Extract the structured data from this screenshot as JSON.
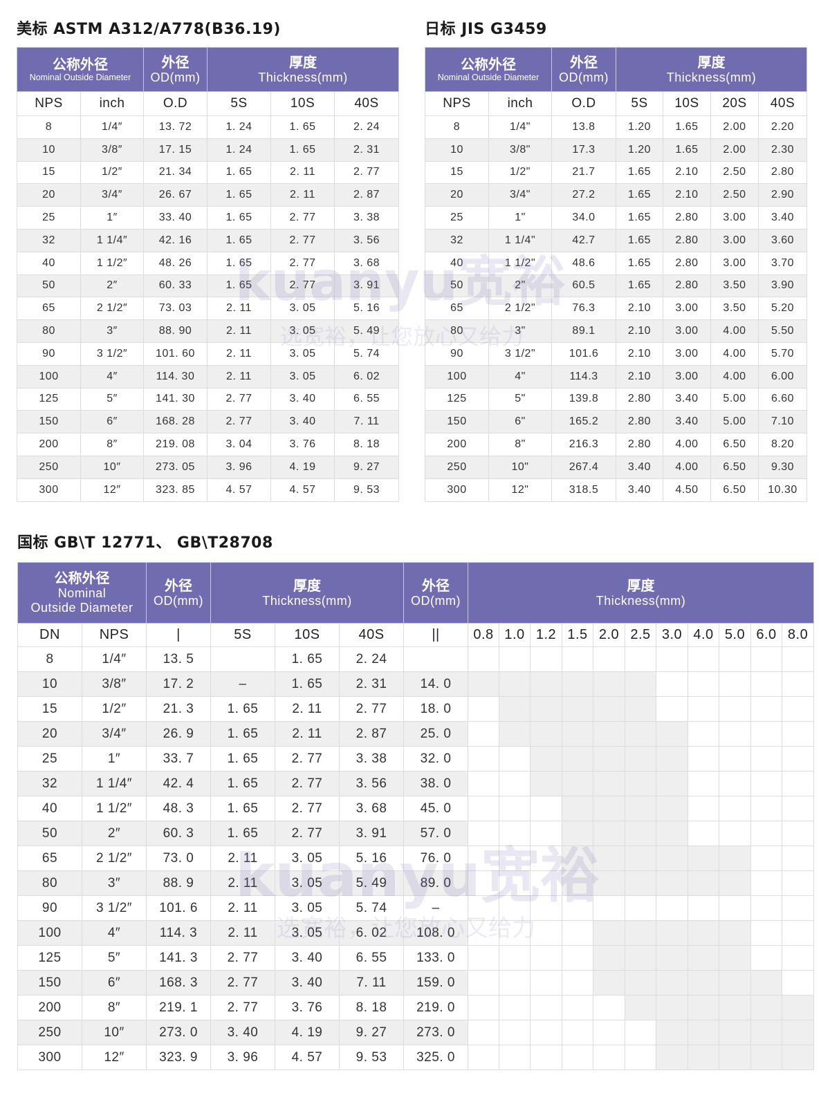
{
  "colors": {
    "header": "#716cb0",
    "alt_row": "#efefef",
    "shaded": "#efefef"
  },
  "watermark": {
    "logo": "kuanyu宽裕",
    "slogan": "选宽裕，让您放心又给力"
  },
  "header_labels": {
    "nominal_cn": "公称外径",
    "nominal_en": "Nominal Outside Diameter",
    "nominal_en_1": "Nominal",
    "nominal_en_2": "Outside Diameter",
    "od_cn": "外径",
    "od_en": "OD(mm)",
    "thick_cn": "厚度",
    "thick_en": "Thickness(mm)"
  },
  "astm": {
    "title": "美标 ASTM A312/A778(B36.19)",
    "columns": [
      "NPS",
      "inch",
      "O.D",
      "5S",
      "10S",
      "40S"
    ],
    "rows": [
      [
        "8",
        "1/4″",
        "13. 72",
        "1. 24",
        "1. 65",
        "2. 24"
      ],
      [
        "10",
        "3/8″",
        "17. 15",
        "1. 24",
        "1. 65",
        "2. 31"
      ],
      [
        "15",
        "1/2″",
        "21. 34",
        "1. 65",
        "2. 11",
        "2. 77"
      ],
      [
        "20",
        "3/4″",
        "26. 67",
        "1. 65",
        "2. 11",
        "2. 87"
      ],
      [
        "25",
        "1″",
        "33. 40",
        "1. 65",
        "2. 77",
        "3. 38"
      ],
      [
        "32",
        "1 1/4″",
        "42. 16",
        "1. 65",
        "2. 77",
        "3. 56"
      ],
      [
        "40",
        "1 1/2″",
        "48. 26",
        "1. 65",
        "2. 77",
        "3. 68"
      ],
      [
        "50",
        "2″",
        "60. 33",
        "1. 65",
        "2. 77",
        "3. 91"
      ],
      [
        "65",
        "2 1/2″",
        "73. 03",
        "2. 11",
        "3. 05",
        "5. 16"
      ],
      [
        "80",
        "3″",
        "88. 90",
        "2. 11",
        "3. 05",
        "5. 49"
      ],
      [
        "90",
        "3 1/2″",
        "101. 60",
        "2. 11",
        "3. 05",
        "5. 74"
      ],
      [
        "100",
        "4″",
        "114. 30",
        "2. 11",
        "3. 05",
        "6. 02"
      ],
      [
        "125",
        "5″",
        "141. 30",
        "2. 77",
        "3. 40",
        "6. 55"
      ],
      [
        "150",
        "6″",
        "168. 28",
        "2. 77",
        "3. 40",
        "7. 11"
      ],
      [
        "200",
        "8″",
        "219. 08",
        "3. 04",
        "3. 76",
        "8. 18"
      ],
      [
        "250",
        "10″",
        "273. 05",
        "3. 96",
        "4. 19",
        "9. 27"
      ],
      [
        "300",
        "12″",
        "323. 85",
        "4. 57",
        "4. 57",
        "9. 53"
      ]
    ]
  },
  "jis": {
    "title": "日标 JIS G3459",
    "columns": [
      "NPS",
      "inch",
      "O.D",
      "5S",
      "10S",
      "20S",
      "40S"
    ],
    "rows": [
      [
        "8",
        "1/4\"",
        "13.8",
        "1.20",
        "1.65",
        "2.00",
        "2.20"
      ],
      [
        "10",
        "3/8\"",
        "17.3",
        "1.20",
        "1.65",
        "2.00",
        "2.30"
      ],
      [
        "15",
        "1/2\"",
        "21.7",
        "1.65",
        "2.10",
        "2.50",
        "2.80"
      ],
      [
        "20",
        "3/4\"",
        "27.2",
        "1.65",
        "2.10",
        "2.50",
        "2.90"
      ],
      [
        "25",
        "1\"",
        "34.0",
        "1.65",
        "2.80",
        "3.00",
        "3.40"
      ],
      [
        "32",
        "1 1/4\"",
        "42.7",
        "1.65",
        "2.80",
        "3.00",
        "3.60"
      ],
      [
        "40",
        "1 1/2\"",
        "48.6",
        "1.65",
        "2.80",
        "3.00",
        "3.70"
      ],
      [
        "50",
        "2\"",
        "60.5",
        "1.65",
        "2.80",
        "3.50",
        "3.90"
      ],
      [
        "65",
        "2 1/2\"",
        "76.3",
        "2.10",
        "3.00",
        "3.50",
        "5.20"
      ],
      [
        "80",
        "3\"",
        "89.1",
        "2.10",
        "3.00",
        "4.00",
        "5.50"
      ],
      [
        "90",
        "3 1/2\"",
        "101.6",
        "2.10",
        "3.00",
        "4.00",
        "5.70"
      ],
      [
        "100",
        "4\"",
        "114.3",
        "2.10",
        "3.00",
        "4.00",
        "6.00"
      ],
      [
        "125",
        "5\"",
        "139.8",
        "2.80",
        "3.40",
        "5.00",
        "6.60"
      ],
      [
        "150",
        "6\"",
        "165.2",
        "2.80",
        "3.40",
        "5.00",
        "7.10"
      ],
      [
        "200",
        "8\"",
        "216.3",
        "2.80",
        "4.00",
        "6.50",
        "8.20"
      ],
      [
        "250",
        "10\"",
        "267.4",
        "3.40",
        "4.00",
        "6.50",
        "9.30"
      ],
      [
        "300",
        "12\"",
        "318.5",
        "3.40",
        "4.50",
        "6.50",
        "10.30"
      ]
    ]
  },
  "gb": {
    "title": "国标 GB\\T 12771、 GB\\T28708",
    "columns": [
      "DN",
      "NPS",
      "|",
      "5S",
      "10S",
      "40S",
      "||"
    ],
    "thickness_columns": [
      "0.8",
      "1.0",
      "1.2",
      "1.5",
      "2.0",
      "2.5",
      "3.0",
      "4.0",
      "5.0",
      "6.0",
      "8.0"
    ],
    "rows": [
      [
        "8",
        "1/4″",
        "13. 5",
        "",
        "1. 65",
        "2. 24",
        ""
      ],
      [
        "10",
        "3/8″",
        "17. 2",
        "–",
        "1. 65",
        "2. 31",
        "14. 0"
      ],
      [
        "15",
        "1/2″",
        "21. 3",
        "1. 65",
        "2. 11",
        "2. 77",
        "18. 0"
      ],
      [
        "20",
        "3/4″",
        "26. 9",
        "1. 65",
        "2. 11",
        "2. 87",
        "25. 0"
      ],
      [
        "25",
        "1″",
        "33. 7",
        "1. 65",
        "2. 77",
        "3. 38",
        "32. 0"
      ],
      [
        "32",
        "1 1/4″",
        "42. 4",
        "1. 65",
        "2. 77",
        "3. 56",
        "38. 0"
      ],
      [
        "40",
        "1 1/2″",
        "48. 3",
        "1. 65",
        "2. 77",
        "3. 68",
        "45. 0"
      ],
      [
        "50",
        "2″",
        "60. 3",
        "1. 65",
        "2. 77",
        "3. 91",
        "57. 0"
      ],
      [
        "65",
        "2 1/2″",
        "73. 0",
        "2. 11",
        "3. 05",
        "5. 16",
        "76. 0"
      ],
      [
        "80",
        "3″",
        "88. 9",
        "2. 11",
        "3. 05",
        "5. 49",
        "89. 0"
      ],
      [
        "90",
        "3 1/2″",
        "101. 6",
        "2. 11",
        "3. 05",
        "5. 74",
        "–"
      ],
      [
        "100",
        "4″",
        "114. 3",
        "2. 11",
        "3. 05",
        "6. 02",
        "108. 0"
      ],
      [
        "125",
        "5″",
        "141. 3",
        "2. 77",
        "3. 40",
        "6. 55",
        "133. 0"
      ],
      [
        "150",
        "6″",
        "168. 3",
        "2. 77",
        "3. 40",
        "7. 11",
        "159. 0"
      ],
      [
        "200",
        "8″",
        "219. 1",
        "2. 77",
        "3. 76",
        "8. 18",
        "219. 0"
      ],
      [
        "250",
        "10″",
        "273. 0",
        "3. 40",
        "4. 19",
        "9. 27",
        "273. 0"
      ],
      [
        "300",
        "12″",
        "323. 9",
        "3. 96",
        "4. 57",
        "9. 53",
        "325. 0"
      ]
    ],
    "available_thickness": [
      [],
      [
        "0.8",
        "1.0",
        "1.2",
        "1.5",
        "2.0",
        "2.5"
      ],
      [
        "1.0",
        "1.2",
        "1.5",
        "2.0",
        "2.5"
      ],
      [
        "1.0",
        "1.2",
        "1.5",
        "2.0",
        "2.5",
        "3.0"
      ],
      [
        "1.2",
        "1.5",
        "2.0",
        "2.5",
        "3.0"
      ],
      [
        "1.2",
        "1.5",
        "2.0",
        "2.5",
        "3.0"
      ],
      [
        "1.5",
        "2.0",
        "2.5",
        "3.0"
      ],
      [
        "1.5",
        "2.0",
        "2.5",
        "3.0"
      ],
      [
        "1.5",
        "2.0",
        "2.5",
        "3.0",
        "4.0",
        "5.0"
      ],
      [
        "1.5",
        "2.0",
        "2.5",
        "3.0",
        "4.0",
        "5.0"
      ],
      [],
      [
        "2.0",
        "2.5",
        "3.0",
        "4.0",
        "5.0"
      ],
      [
        "2.0",
        "2.5",
        "3.0",
        "4.0",
        "5.0"
      ],
      [
        "2.0",
        "2.5",
        "3.0",
        "4.0",
        "5.0",
        "6.0"
      ],
      [
        "2.5",
        "3.0",
        "4.0",
        "5.0",
        "6.0",
        "8.0"
      ],
      [
        "3.0",
        "4.0",
        "5.0",
        "6.0",
        "8.0"
      ],
      [
        "3.0",
        "4.0",
        "5.0",
        "6.0",
        "8.0"
      ]
    ]
  }
}
